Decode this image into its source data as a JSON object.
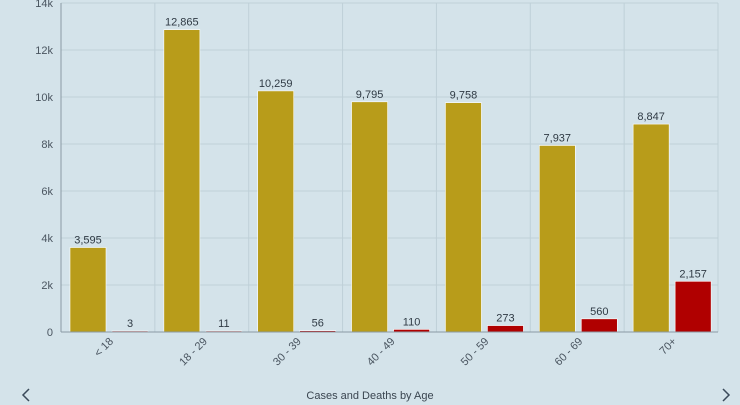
{
  "chart_data": {
    "type": "bar",
    "title": "Cases and Deaths by Age",
    "categories": [
      "< 18",
      "18 - 29",
      "30 - 39",
      "40 - 49",
      "50 - 59",
      "60 - 69",
      "70+"
    ],
    "series": [
      {
        "values": [
          3595,
          12865,
          10259,
          9795,
          9758,
          7937,
          8847
        ],
        "color": "#b89c1a"
      },
      {
        "values": [
          3,
          11,
          56,
          110,
          273,
          560,
          2157
        ],
        "color": "#b00000"
      }
    ],
    "data_labels": {
      "s0": [
        "3,595",
        "12,865",
        "10,259",
        "9,795",
        "9,758",
        "7,937",
        "8,847"
      ],
      "s1": [
        "3",
        "11",
        "56",
        "110",
        "273",
        "560",
        "2,157"
      ]
    },
    "ylim": [
      0,
      14000
    ],
    "yticks": [
      0,
      2000,
      4000,
      6000,
      8000,
      10000,
      12000,
      14000
    ],
    "ytick_labels": [
      "0",
      "2k",
      "4k",
      "6k",
      "8k",
      "10k",
      "12k",
      "14k"
    ],
    "grid": true,
    "legend": "none"
  },
  "nav": {
    "prev_icon": "chevron-left-icon",
    "next_icon": "chevron-right-icon"
  }
}
